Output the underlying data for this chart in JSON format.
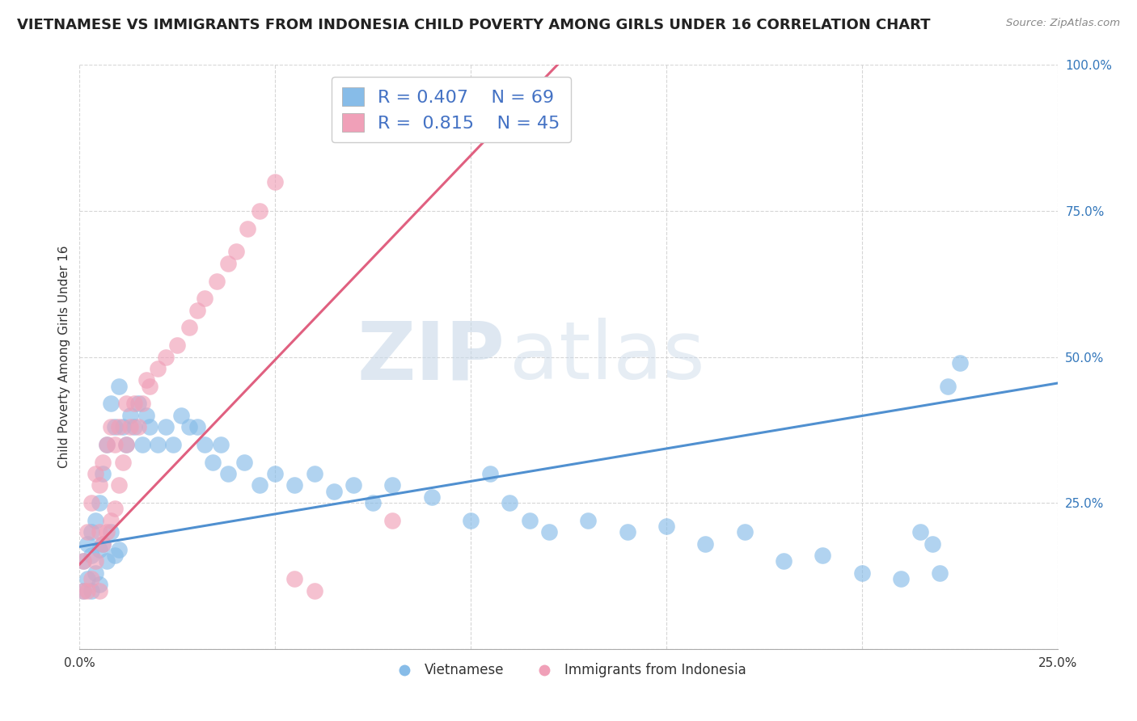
{
  "title": "VIETNAMESE VS IMMIGRANTS FROM INDONESIA CHILD POVERTY AMONG GIRLS UNDER 16 CORRELATION CHART",
  "source": "Source: ZipAtlas.com",
  "ylabel": "Child Poverty Among Girls Under 16",
  "xlim": [
    0.0,
    0.25
  ],
  "ylim": [
    0.0,
    1.0
  ],
  "xticks": [
    0.0,
    0.05,
    0.1,
    0.15,
    0.2,
    0.25
  ],
  "yticks": [
    0.0,
    0.25,
    0.5,
    0.75,
    1.0
  ],
  "legend_labels": [
    "Vietnamese",
    "Immigrants from Indonesia"
  ],
  "legend_r": [
    "0.407",
    "0.815"
  ],
  "legend_n": [
    "69",
    "45"
  ],
  "color_vietnamese": "#87BCE8",
  "color_indonesia": "#F0A0B8",
  "color_vietnamese_line": "#5090D0",
  "color_indonesia_line": "#E06080",
  "watermark_zip": "ZIP",
  "watermark_atlas": "atlas",
  "title_fontsize": 13,
  "label_fontsize": 11,
  "tick_fontsize": 11,
  "legend_fontsize": 14,
  "stat_fontsize": 16,
  "background_color": "#FFFFFF",
  "grid_color": "#CCCCCC",
  "viet_x": [
    0.001,
    0.001,
    0.002,
    0.002,
    0.003,
    0.003,
    0.003,
    0.004,
    0.004,
    0.005,
    0.005,
    0.005,
    0.006,
    0.006,
    0.007,
    0.007,
    0.008,
    0.008,
    0.009,
    0.009,
    0.01,
    0.01,
    0.011,
    0.012,
    0.013,
    0.014,
    0.015,
    0.016,
    0.017,
    0.018,
    0.02,
    0.022,
    0.024,
    0.026,
    0.028,
    0.03,
    0.032,
    0.034,
    0.036,
    0.038,
    0.042,
    0.046,
    0.05,
    0.055,
    0.06,
    0.065,
    0.07,
    0.075,
    0.08,
    0.09,
    0.1,
    0.105,
    0.11,
    0.115,
    0.12,
    0.13,
    0.14,
    0.15,
    0.16,
    0.17,
    0.18,
    0.19,
    0.2,
    0.21,
    0.215,
    0.218,
    0.22,
    0.222,
    0.225
  ],
  "viet_y": [
    0.1,
    0.15,
    0.12,
    0.18,
    0.1,
    0.16,
    0.2,
    0.13,
    0.22,
    0.11,
    0.17,
    0.25,
    0.18,
    0.3,
    0.15,
    0.35,
    0.2,
    0.42,
    0.16,
    0.38,
    0.17,
    0.45,
    0.38,
    0.35,
    0.4,
    0.38,
    0.42,
    0.35,
    0.4,
    0.38,
    0.35,
    0.38,
    0.35,
    0.4,
    0.38,
    0.38,
    0.35,
    0.32,
    0.35,
    0.3,
    0.32,
    0.28,
    0.3,
    0.28,
    0.3,
    0.27,
    0.28,
    0.25,
    0.28,
    0.26,
    0.22,
    0.3,
    0.25,
    0.22,
    0.2,
    0.22,
    0.2,
    0.21,
    0.18,
    0.2,
    0.15,
    0.16,
    0.13,
    0.12,
    0.2,
    0.18,
    0.13,
    0.45,
    0.49
  ],
  "indo_x": [
    0.001,
    0.001,
    0.002,
    0.002,
    0.003,
    0.003,
    0.004,
    0.004,
    0.005,
    0.005,
    0.005,
    0.006,
    0.006,
    0.007,
    0.007,
    0.008,
    0.008,
    0.009,
    0.009,
    0.01,
    0.01,
    0.011,
    0.012,
    0.012,
    0.013,
    0.014,
    0.015,
    0.016,
    0.017,
    0.018,
    0.02,
    0.022,
    0.025,
    0.028,
    0.03,
    0.032,
    0.035,
    0.038,
    0.04,
    0.043,
    0.046,
    0.05,
    0.055,
    0.06,
    0.08
  ],
  "indo_y": [
    0.1,
    0.15,
    0.1,
    0.2,
    0.12,
    0.25,
    0.15,
    0.3,
    0.1,
    0.2,
    0.28,
    0.18,
    0.32,
    0.2,
    0.35,
    0.22,
    0.38,
    0.24,
    0.35,
    0.28,
    0.38,
    0.32,
    0.35,
    0.42,
    0.38,
    0.42,
    0.38,
    0.42,
    0.46,
    0.45,
    0.48,
    0.5,
    0.52,
    0.55,
    0.58,
    0.6,
    0.63,
    0.66,
    0.68,
    0.72,
    0.75,
    0.8,
    0.12,
    0.1,
    0.22
  ],
  "viet_line_x": [
    0.0,
    0.25
  ],
  "viet_line_y": [
    0.175,
    0.455
  ],
  "indo_line_x": [
    0.0,
    0.125
  ],
  "indo_line_y": [
    0.145,
    1.02
  ]
}
